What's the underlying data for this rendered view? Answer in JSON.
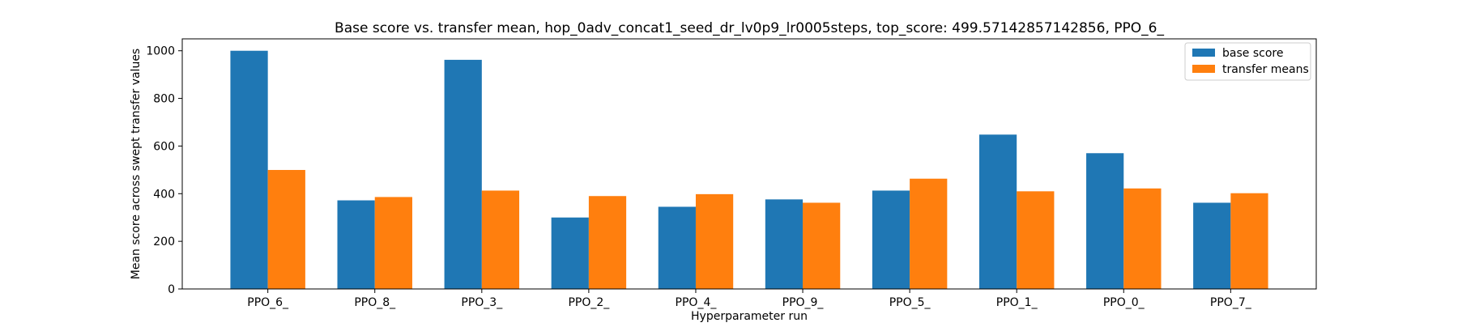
{
  "chart_data": {
    "type": "bar",
    "title": "Base score vs. transfer mean, hop_0adv_concat1_seed_dr_lv0p9_lr0005steps, top_score: 499.57142857142856, PPO_6_",
    "xlabel": "Hyperparameter run",
    "ylabel": "Mean score across swept transfer values",
    "categories": [
      "PPO_6_",
      "PPO_8_",
      "PPO_3_",
      "PPO_2_",
      "PPO_4_",
      "PPO_9_",
      "PPO_5_",
      "PPO_1_",
      "PPO_0_",
      "PPO_7_"
    ],
    "series": [
      {
        "name": "base score",
        "color": "#1f77b4",
        "values": [
          1000,
          372,
          962,
          300,
          345,
          376,
          413,
          648,
          570,
          362
        ]
      },
      {
        "name": "transfer means",
        "color": "#ff7f0e",
        "values": [
          499.57,
          386,
          413,
          390,
          398,
          362,
          463,
          410,
          422,
          402
        ]
      }
    ],
    "ylim": [
      0,
      1050
    ],
    "yticks": [
      0,
      200,
      400,
      600,
      800,
      1000
    ],
    "grid": false,
    "legend_position": "top-right"
  }
}
